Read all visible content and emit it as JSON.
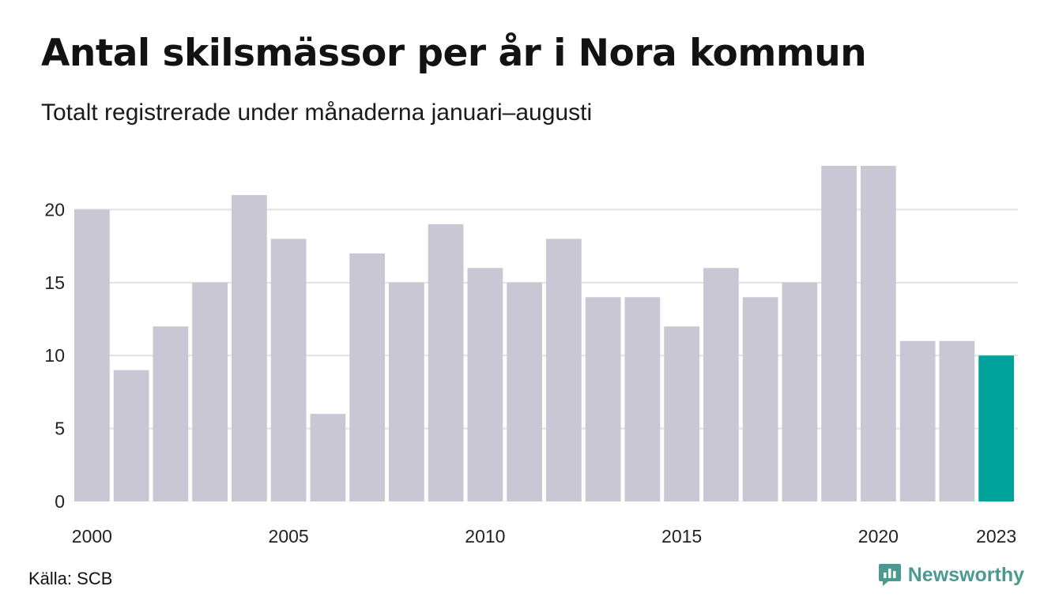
{
  "title": "Antal skilsmässor per år i Nora kommun",
  "subtitle": "Totalt registrerade under månaderna januari–augusti",
  "source": "Källa: SCB",
  "brand": "Newsworthy",
  "colors": {
    "bar": "#c9c7d3",
    "highlight": "#00a39a",
    "grid": "#e2e2e2",
    "brand": "#4a9a90"
  },
  "icons": {
    "brand_logo": "chart-speech-bubble-icon"
  },
  "chart_data": {
    "type": "bar",
    "categories": [
      "2000",
      "2001",
      "2002",
      "2003",
      "2004",
      "2005",
      "2006",
      "2007",
      "2008",
      "2009",
      "2010",
      "2011",
      "2012",
      "2013",
      "2014",
      "2015",
      "2016",
      "2017",
      "2018",
      "2019",
      "2020",
      "2021",
      "2022",
      "2023"
    ],
    "values": [
      20,
      9,
      12,
      15,
      21,
      18,
      6,
      17,
      15,
      19,
      16,
      15,
      18,
      14,
      14,
      12,
      16,
      14,
      15,
      23,
      23,
      11,
      11,
      10
    ],
    "highlight_category": "2023",
    "x_tick_labels": [
      "2000",
      "2005",
      "2010",
      "2015",
      "2020",
      "2023"
    ],
    "y_ticks": [
      0,
      5,
      10,
      15,
      20
    ],
    "ylim": [
      0,
      23
    ],
    "grid": true,
    "legend": "none",
    "xlabel": "",
    "ylabel": ""
  }
}
